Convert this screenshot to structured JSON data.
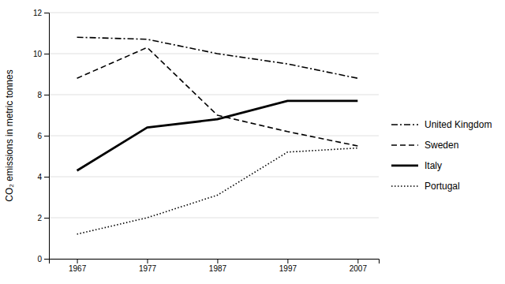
{
  "chart_data": {
    "type": "line",
    "ylabel": "CO₂ emissions in metric tonnes",
    "x": [
      1967,
      1977,
      1987,
      1997,
      2007
    ],
    "series": [
      {
        "name": "United Kingdom",
        "color": "#000000",
        "line_style": "dashdot",
        "values": [
          10.8,
          10.7,
          10.0,
          9.5,
          8.8
        ]
      },
      {
        "name": "Sweden",
        "color": "#000000",
        "line_style": "dashed",
        "values": [
          8.8,
          10.3,
          7.0,
          6.2,
          5.5
        ]
      },
      {
        "name": "Italy",
        "color": "#000000",
        "line_style": "solid",
        "values": [
          4.3,
          6.4,
          6.8,
          7.7,
          7.7
        ]
      },
      {
        "name": "Portugal",
        "color": "#000000",
        "line_style": "dotted",
        "values": [
          1.2,
          2.0,
          3.1,
          5.2,
          5.4
        ]
      }
    ],
    "xlim": [
      1963,
      2010
    ],
    "xticks": [
      1967,
      1977,
      1987,
      1997,
      2007
    ],
    "ylim": [
      0,
      12
    ],
    "yticks": [
      0,
      2,
      4,
      6,
      8,
      10,
      12
    ],
    "grid": "y",
    "legend": "right"
  }
}
